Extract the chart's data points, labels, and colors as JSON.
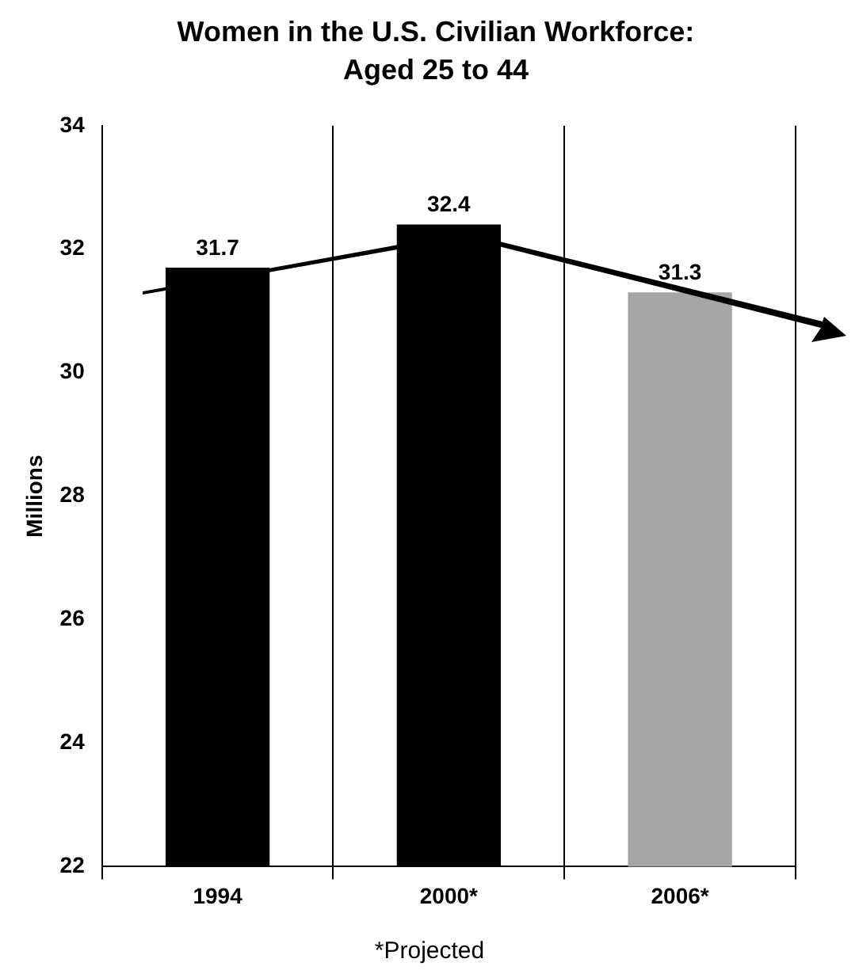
{
  "chart_data": {
    "type": "bar",
    "title": "Women in the U.S. Civilian Workforce:  Aged 25 to 44",
    "ylabel": "Millions",
    "categories": [
      "1994",
      "2000*",
      "2006*"
    ],
    "values": [
      31.7,
      32.4,
      31.3
    ],
    "colors": [
      "#000000",
      "#000000",
      "#a6a6a6"
    ],
    "ylim": [
      22,
      34
    ],
    "yticks": [
      22,
      24,
      26,
      28,
      30,
      32,
      34
    ],
    "grid": "x",
    "data_labels": true,
    "annotations": [
      "*Projected"
    ]
  }
}
